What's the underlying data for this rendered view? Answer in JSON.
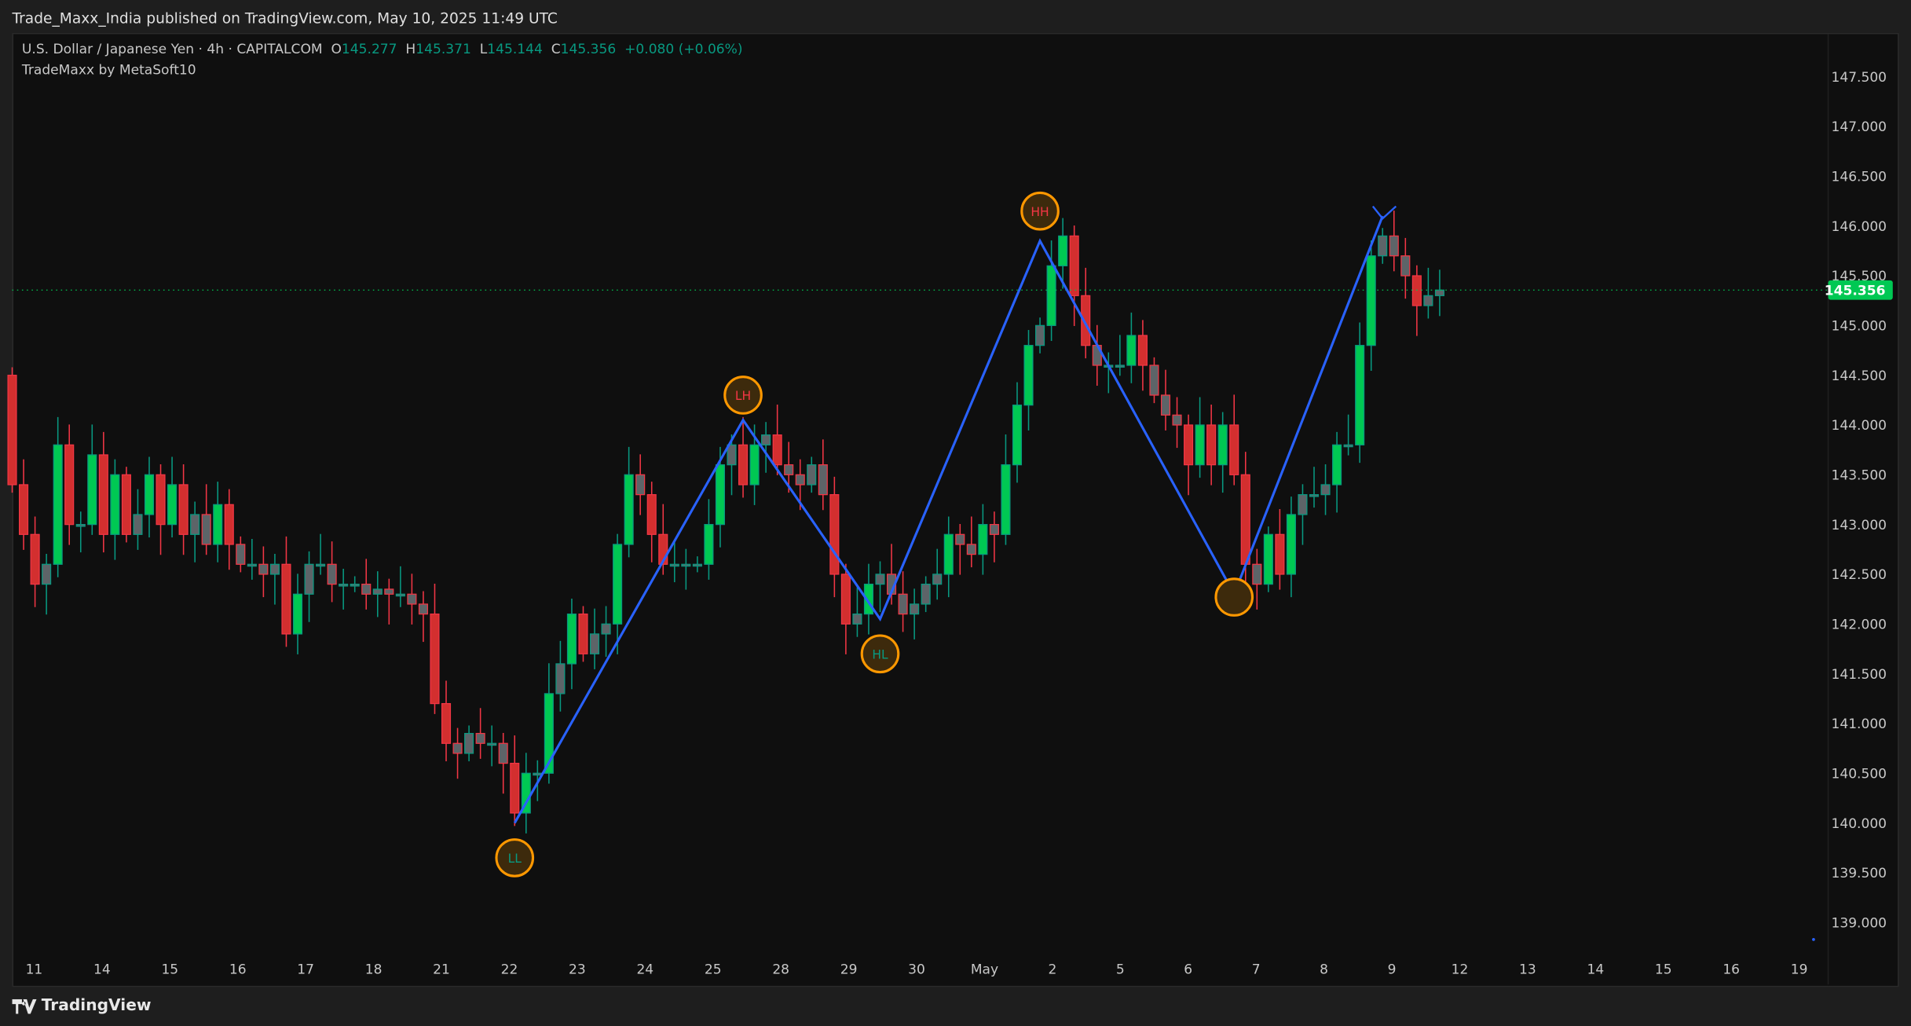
{
  "header": {
    "published": "Trade_Maxx_India published on TradingView.com, May 10, 2025 11:49 UTC"
  },
  "legend": {
    "symbol": "U.S. Dollar / Japanese Yen · 4h · CAPITALCOM",
    "o_label": "O",
    "o": "145.277",
    "h_label": "H",
    "h": "145.371",
    "l_label": "L",
    "l": "145.144",
    "c_label": "C",
    "c": "145.356",
    "change": "+0.080 (+0.06%)",
    "indicator": "TradeMaxx by MetaSoft10"
  },
  "footer": {
    "logo_text": "TradingView",
    "logo_icon": "tradingview-logo-icon"
  },
  "colors": {
    "up_fill": "#00c853",
    "up_border": "#089981",
    "down_fill": "#d32f2f",
    "down_border": "#f23645",
    "neutral_fill": "#5d6468",
    "zigzag": "#2962ff",
    "marker": "#ff9800",
    "price_line": "#00c853"
  },
  "chart_data": {
    "type": "candlestick",
    "timeframe": "4h",
    "current_price": "145.356",
    "y_ticks": [
      "147.500",
      "147.000",
      "146.500",
      "146.000",
      "145.500",
      "145.000",
      "144.500",
      "144.000",
      "143.500",
      "143.000",
      "142.500",
      "142.000",
      "141.500",
      "141.000",
      "140.500",
      "140.000",
      "139.500",
      "139.000"
    ],
    "ylim": [
      138.7,
      147.8
    ],
    "x_ticks": [
      {
        "label": "11",
        "day": 0
      },
      {
        "label": "14",
        "day": 1
      },
      {
        "label": "15",
        "day": 2
      },
      {
        "label": "16",
        "day": 3
      },
      {
        "label": "17",
        "day": 4
      },
      {
        "label": "18",
        "day": 5
      },
      {
        "label": "21",
        "day": 6
      },
      {
        "label": "22",
        "day": 7
      },
      {
        "label": "23",
        "day": 8
      },
      {
        "label": "24",
        "day": 9
      },
      {
        "label": "25",
        "day": 10
      },
      {
        "label": "28",
        "day": 11
      },
      {
        "label": "29",
        "day": 12
      },
      {
        "label": "30",
        "day": 13
      },
      {
        "label": "May",
        "day": 14
      },
      {
        "label": "2",
        "day": 15
      },
      {
        "label": "5",
        "day": 16
      },
      {
        "label": "6",
        "day": 17
      },
      {
        "label": "7",
        "day": 18
      },
      {
        "label": "8",
        "day": 19
      },
      {
        "label": "9",
        "day": 20
      },
      {
        "label": "12",
        "day": 21
      },
      {
        "label": "13",
        "day": 22
      },
      {
        "label": "14",
        "day": 23
      },
      {
        "label": "15",
        "day": 24
      },
      {
        "label": "16",
        "day": 25
      },
      {
        "label": "19",
        "day": 26
      }
    ],
    "first_open": 144.5,
    "closes": [
      143.4,
      142.9,
      142.4,
      142.6,
      143.8,
      143.0,
      143.0,
      143.7,
      142.9,
      143.5,
      142.9,
      143.1,
      143.5,
      143.0,
      143.4,
      142.9,
      143.1,
      142.8,
      143.2,
      142.8,
      142.6,
      142.6,
      142.5,
      142.6,
      141.9,
      142.3,
      142.6,
      142.6,
      142.4,
      142.4,
      142.4,
      142.3,
      142.35,
      142.3,
      142.3,
      142.2,
      142.1,
      141.2,
      140.8,
      140.7,
      140.9,
      140.8,
      140.8,
      140.6,
      140.1,
      140.5,
      140.5,
      141.3,
      141.6,
      142.1,
      141.7,
      141.9,
      142.0,
      142.8,
      143.5,
      143.3,
      142.9,
      142.6,
      142.6,
      142.6,
      142.6,
      143.0,
      143.6,
      143.8,
      143.4,
      143.8,
      143.9,
      143.6,
      143.5,
      143.4,
      143.6,
      143.3,
      142.5,
      142.0,
      142.1,
      142.4,
      142.5,
      142.3,
      142.1,
      142.2,
      142.4,
      142.5,
      142.9,
      142.8,
      142.7,
      143.0,
      142.9,
      143.6,
      144.2,
      144.8,
      145.0,
      145.6,
      145.9,
      145.3,
      144.8,
      144.6,
      144.6,
      144.6,
      144.9,
      144.6,
      144.3,
      144.1,
      144.0,
      143.6,
      144.0,
      143.6,
      144.0,
      143.5,
      142.6,
      142.4,
      142.9,
      142.5,
      143.1,
      143.3,
      143.3,
      143.4,
      143.8,
      143.8,
      144.8,
      145.7,
      145.9,
      145.7,
      145.5,
      145.2,
      145.3,
      145.356
    ],
    "zigzag": [
      {
        "candle": 44,
        "price": 140.0
      },
      {
        "candle": 64,
        "price": 144.05
      },
      {
        "candle": 76,
        "price": 142.05
      },
      {
        "candle": 90,
        "price": 145.85
      },
      {
        "candle": 107,
        "price": 142.3
      },
      {
        "candle": 120,
        "price": 146.1
      }
    ],
    "swing_labels": [
      {
        "text": "LL",
        "candle": 44,
        "price": 139.65,
        "text_color": "#089981"
      },
      {
        "text": "LH",
        "candle": 64,
        "price": 144.3,
        "text_color": "#f23645"
      },
      {
        "text": "HL",
        "candle": 76,
        "price": 141.7,
        "text_color": "#089981"
      },
      {
        "text": "HH",
        "candle": 90,
        "price": 146.15,
        "text_color": "#f23645"
      },
      {
        "text": "",
        "candle": 107,
        "price": 142.27,
        "text_color": "#089981"
      }
    ]
  }
}
